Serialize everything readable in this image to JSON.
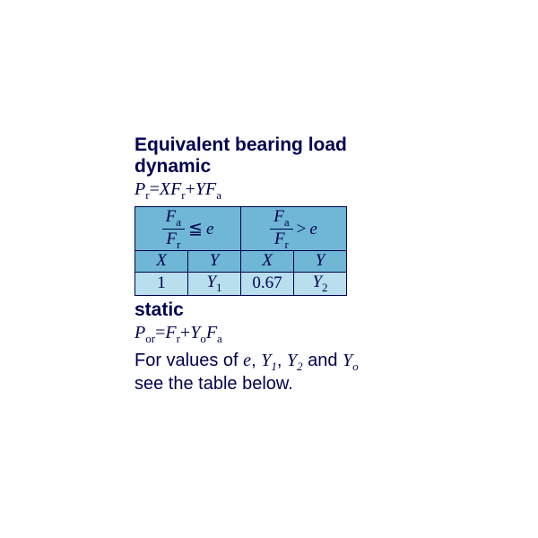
{
  "title_line1": "Equivalent bearing load",
  "title_line2": "dynamic",
  "formula_dynamic": {
    "lhs_var": "P",
    "lhs_sub": "r",
    "eq": "=",
    "t1_coef": "X",
    "t1_var": "F",
    "t1_sub": "r",
    "plus": "+",
    "t2_coef": "Y",
    "t2_var": "F",
    "t2_sub": "a"
  },
  "table": {
    "colors": {
      "header_bg": "#6fb7d4",
      "value_bg": "#b9dfef",
      "border": "#000050",
      "text": "#000050"
    },
    "header_left": {
      "num_var": "F",
      "num_sub": "a",
      "den_var": "F",
      "den_sub": "r",
      "op": "≦",
      "rhs": "e"
    },
    "header_right": {
      "num_var": "F",
      "num_sub": "a",
      "den_var": "F",
      "den_sub": "r",
      "op": ">",
      "rhs": "e"
    },
    "xy_row": [
      "X",
      "Y",
      "X",
      "Y"
    ],
    "val_row": {
      "c1": "1",
      "c2_var": "Y",
      "c2_sub": "1",
      "c3": "0.67",
      "c4_var": "Y",
      "c4_sub": "2"
    }
  },
  "static_label": "static",
  "formula_static": {
    "lhs_var": "P",
    "lhs_sub": "or",
    "eq": "=",
    "t1_var": "F",
    "t1_sub": "r",
    "plus": "+",
    "t2_coef": "Y",
    "t2_coef_sub": "o",
    "t2_var": "F",
    "t2_sub": "a"
  },
  "note": {
    "pre": "For values of ",
    "v1": "e",
    "c1": ", ",
    "v2": "Y",
    "v2_sub": "1",
    "c2": ", ",
    "v3": "Y",
    "v3_sub": "2",
    "c3": " and ",
    "v4": "Y",
    "v4_sub": "o",
    "post_line1_end": "",
    "post_line2": "see the table below."
  }
}
